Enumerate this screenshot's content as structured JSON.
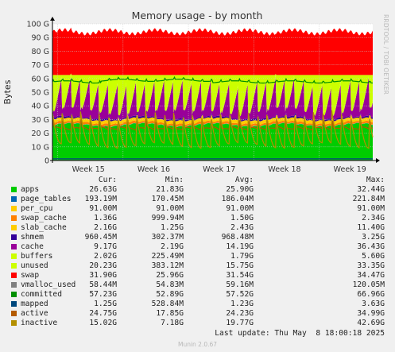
{
  "chart_data": {
    "type": "area",
    "title": "Memory usage - by month",
    "ylabel": "Bytes",
    "ylim": [
      0,
      100
    ],
    "yunit": "G",
    "y_ticks": [
      "0",
      "10 G",
      "20 G",
      "30 G",
      "40 G",
      "50 G",
      "60 G",
      "70 G",
      "80 G",
      "90 G",
      "100 G"
    ],
    "x_ticks": [
      "Week 15",
      "Week 16",
      "Week 17",
      "Week 18",
      "Week 19"
    ],
    "grid": true,
    "side_label": "RRDTOOL / TOBI OETIKER",
    "column_headers": {
      "cur": "Cur:",
      "min": "Min:",
      "avg": "Avg:",
      "max": "Max:"
    },
    "series": [
      {
        "name": "apps",
        "color": "#00cc00",
        "cur": "26.63G",
        "min": "21.83G",
        "avg": "25.90G",
        "max": "32.44G",
        "typical_g": 25.9
      },
      {
        "name": "page_tables",
        "color": "#0066b3",
        "cur": "193.19M",
        "min": "170.45M",
        "avg": "186.04M",
        "max": "221.84M",
        "typical_g": 0.19
      },
      {
        "name": "per_cpu",
        "color": "#ffcc00",
        "cur": "91.00M",
        "min": "91.00M",
        "avg": "91.00M",
        "max": "91.00M",
        "typical_g": 0.09
      },
      {
        "name": "swap_cache",
        "color": "#ff8000",
        "cur": "1.36G",
        "min": "999.94M",
        "avg": "1.50G",
        "max": "2.34G",
        "typical_g": 1.5
      },
      {
        "name": "slab_cache",
        "color": "#ffcc00",
        "cur": "2.16G",
        "min": "1.25G",
        "avg": "2.43G",
        "max": "11.40G",
        "typical_g": 2.43
      },
      {
        "name": "shmem",
        "color": "#330099",
        "cur": "960.45M",
        "min": "302.37M",
        "avg": "968.48M",
        "max": "3.25G",
        "typical_g": 0.97
      },
      {
        "name": "cache",
        "color": "#990099",
        "cur": "9.17G",
        "min": "2.19G",
        "avg": "14.19G",
        "max": "36.43G",
        "typical_g": 14.19
      },
      {
        "name": "buffers",
        "color": "#ccff00",
        "cur": "2.02G",
        "min": "225.49M",
        "avg": "1.79G",
        "max": "5.60G",
        "typical_g": 1.79
      },
      {
        "name": "unused",
        "color": "#ccff00",
        "cur": "20.23G",
        "min": "383.12M",
        "avg": "15.75G",
        "max": "33.35G",
        "typical_g": 15.75
      },
      {
        "name": "swap",
        "color": "#ff0000",
        "cur": "31.90G",
        "min": "25.96G",
        "avg": "31.54G",
        "max": "34.47G",
        "typical_g": 31.54
      },
      {
        "name": "vmalloc_used",
        "color": "#808080",
        "cur": "58.44M",
        "min": "54.83M",
        "avg": "59.16M",
        "max": "120.05M"
      },
      {
        "name": "committed",
        "color": "#008f00",
        "cur": "57.23G",
        "min": "52.89G",
        "avg": "57.52G",
        "max": "66.96G"
      },
      {
        "name": "mapped",
        "color": "#00487d",
        "cur": "1.25G",
        "min": "528.84M",
        "avg": "1.23G",
        "max": "3.63G"
      },
      {
        "name": "active",
        "color": "#b35a00",
        "cur": "24.75G",
        "min": "17.85G",
        "avg": "24.23G",
        "max": "34.99G"
      },
      {
        "name": "inactive",
        "color": "#b38f00",
        "cur": "15.02G",
        "min": "7.18G",
        "avg": "19.77G",
        "max": "42.69G"
      }
    ],
    "last_update": "Last update: Thu May  8 18:00:18 2025",
    "generator": "Munin 2.0.67"
  }
}
